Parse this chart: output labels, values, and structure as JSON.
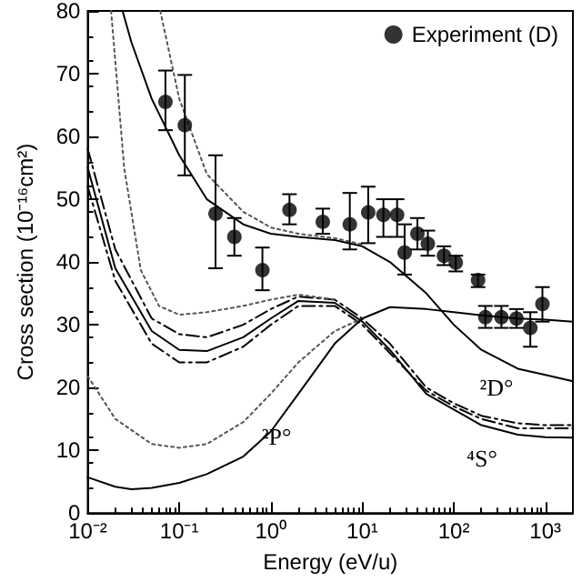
{
  "chart_data": {
    "type": "line",
    "xlabel": "Energy (eV/u)",
    "ylabel": "Cross section (10⁻¹⁶cm²)",
    "log": "x",
    "xlim": [
      0.01,
      2000
    ],
    "ylim": [
      0,
      80
    ],
    "xticks": [
      {
        "value": 0.01,
        "label": "10⁻²"
      },
      {
        "value": 0.1,
        "label": "10⁻¹"
      },
      {
        "value": 1,
        "label": "10⁰"
      },
      {
        "value": 10,
        "label": "10¹"
      },
      {
        "value": 100,
        "label": "10²"
      },
      {
        "value": 1000,
        "label": "10³"
      }
    ],
    "yticks": [
      0,
      10,
      20,
      30,
      40,
      50,
      60,
      70,
      80
    ],
    "grid": false,
    "legend": "top right",
    "annotations": [
      "²P°",
      "²D°",
      "⁴S°"
    ],
    "series": [
      {
        "name": "Experiment (D)",
        "type": "scatter",
        "marker": "circle",
        "color": "#000000",
        "x": [
          0.0706,
          0.115,
          0.249,
          0.4,
          0.81,
          1.6,
          3.7,
          7.3,
          11.6,
          17,
          24,
          29,
          40,
          52,
          78,
          105,
          184,
          221,
          331,
          484,
          685,
          929
        ],
        "values": [
          65.5,
          61.8,
          47.7,
          44,
          38.7,
          48.3,
          46.4,
          46,
          47.9,
          47.5,
          47.5,
          41.5,
          44.5,
          42.9,
          41,
          39.9,
          37.1,
          31.2,
          31.2,
          31,
          29.5,
          33.3
        ],
        "errors": [
          [
            61,
            70.5
          ],
          [
            53.8,
            69.8
          ],
          [
            39,
            57
          ],
          [
            41,
            47
          ],
          [
            35.5,
            42.3
          ],
          [
            46,
            50.8
          ],
          [
            44.5,
            48.5
          ],
          [
            42,
            51
          ],
          [
            43,
            52
          ],
          [
            44,
            50
          ],
          [
            44,
            50
          ],
          [
            38,
            46
          ],
          [
            42,
            47
          ],
          [
            41,
            45
          ],
          [
            39.5,
            42.5
          ],
          [
            38.5,
            41
          ],
          [
            36,
            38
          ],
          [
            29.5,
            33
          ],
          [
            29.5,
            33
          ],
          [
            29.5,
            32.5
          ],
          [
            26.5,
            32
          ],
          [
            30.5,
            36
          ]
        ]
      },
      {
        "color": "#000000",
        "line_style": "solid",
        "x": [
          0.024,
          0.03,
          0.05,
          0.1,
          0.2,
          0.5,
          1,
          2,
          5,
          10,
          20,
          50,
          100,
          200,
          500,
          1000,
          2000
        ],
        "values": [
          80,
          75,
          66,
          57,
          50,
          46,
          44.5,
          44,
          43.5,
          42.5,
          40,
          35,
          30,
          26,
          23,
          22,
          21
        ]
      },
      {
        "color": "#555555",
        "line_style": "dotted",
        "x": [
          0.062,
          0.1,
          0.2,
          0.5,
          1,
          2,
          5,
          10
        ],
        "values": [
          80,
          66,
          54,
          48,
          45.5,
          44.5,
          43.8,
          42.8
        ]
      },
      {
        "color": "#000000",
        "line_style": "dashed",
        "x": [
          0.01,
          0.02,
          0.05,
          0.1,
          0.2,
          0.5,
          1,
          2,
          5,
          10,
          20,
          50,
          100,
          200,
          500,
          1000,
          2000
        ],
        "values": [
          58,
          42,
          31,
          28.5,
          28,
          30,
          32.5,
          34.5,
          34,
          31,
          27,
          20,
          17.5,
          15.5,
          14.3,
          14,
          14
        ]
      },
      {
        "color": "#000000",
        "line_style": "solid",
        "x": [
          0.01,
          0.02,
          0.05,
          0.1,
          0.2,
          0.5,
          1,
          2,
          5,
          10,
          20,
          50,
          100,
          200,
          500,
          1000,
          2000
        ],
        "values": [
          55,
          39,
          29,
          26,
          25.8,
          28,
          31,
          33.8,
          33.5,
          30.5,
          26,
          19,
          16.5,
          14,
          12.5,
          12.1,
          12
        ]
      },
      {
        "color": "#000000",
        "line_style": "dashed",
        "x": [
          0.01,
          0.02,
          0.05,
          0.1,
          0.2,
          0.5,
          1,
          2,
          5,
          10,
          20,
          50,
          100,
          200,
          500,
          1000,
          2000
        ],
        "values": [
          52,
          37,
          27,
          24,
          24,
          26.5,
          30,
          33,
          33,
          30,
          25.5,
          19.5,
          17,
          15,
          13.5,
          13.5,
          13.5
        ]
      },
      {
        "color": "#555555",
        "line_style": "dotted",
        "x": [
          0.018,
          0.025,
          0.038,
          0.06,
          0.1,
          0.2,
          0.5,
          1,
          2,
          5
        ],
        "values": [
          80,
          55,
          38.7,
          33,
          31.6,
          32,
          33,
          34,
          34.8,
          34
        ]
      },
      {
        "color": "#555555",
        "line_style": "dotted",
        "x": [
          0.01,
          0.02,
          0.05,
          0.1,
          0.2,
          0.5,
          1,
          2,
          5,
          10
        ],
        "values": [
          21.8,
          15,
          11,
          10.4,
          11,
          14.5,
          19,
          24,
          29,
          31
        ]
      },
      {
        "color": "#000000",
        "line_style": "solid",
        "x": [
          0.01,
          0.02,
          0.03,
          0.05,
          0.1,
          0.2,
          0.5,
          1,
          2,
          5,
          10,
          20,
          50,
          100,
          200,
          500,
          1000,
          2000
        ],
        "values": [
          5.7,
          4.2,
          3.8,
          4,
          4.8,
          6.2,
          9,
          13,
          19,
          27,
          31,
          32.8,
          32.5,
          32,
          31.5,
          31,
          30.8,
          30.5
        ]
      }
    ]
  }
}
